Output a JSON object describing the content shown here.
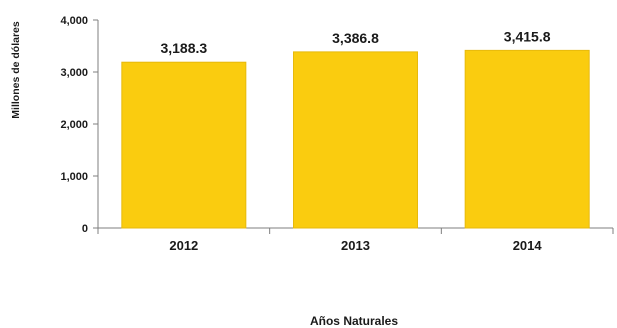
{
  "chart_data": {
    "type": "bar",
    "categories": [
      "2012",
      "2013",
      "2014"
    ],
    "values": [
      3188.3,
      3386.8,
      3415.8
    ],
    "data_labels": [
      "3,188.3",
      "3,386.8",
      "3,415.8"
    ],
    "title": "",
    "xlabel": "Años Naturales",
    "ylabel": "Millones de dólares",
    "ylim": [
      0,
      4000
    ],
    "yticks": [
      0,
      1000,
      2000,
      3000,
      4000
    ],
    "ytick_labels": [
      "0",
      "1,000",
      "2,000",
      "3,000",
      "4,000"
    ],
    "grid": false,
    "legend": "none",
    "colors": {
      "bar": "#FACC0F",
      "bar_edge": "#E7B90C",
      "axis": "#7f7f7f",
      "text": "#1a1a1a"
    }
  }
}
